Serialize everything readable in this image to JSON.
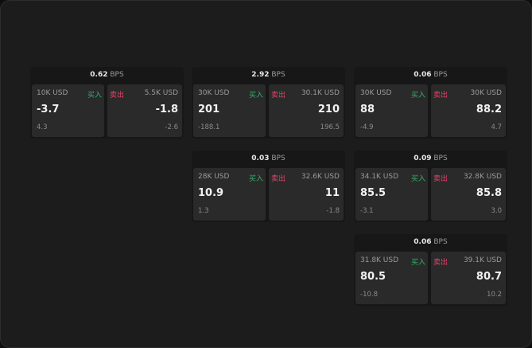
{
  "unit": "BPS",
  "buy_label": "买入",
  "sell_label": "卖出",
  "colors": {
    "buy": "#2fb56a",
    "sell": "#e5436b",
    "background": "#1c1c1c",
    "pane": "#2a2a2a"
  },
  "cards": [
    {
      "spread": "0.62",
      "buy": {
        "qty": "10K USD",
        "price": "-3.7",
        "change": "4.3"
      },
      "sell": {
        "qty": "5.5K USD",
        "price": "-1.8",
        "change": "-2.6"
      }
    },
    {
      "spread": "2.92",
      "buy": {
        "qty": "30K USD",
        "price": "201",
        "change": "-188.1"
      },
      "sell": {
        "qty": "30.1K USD",
        "price": "210",
        "change": "196.5"
      }
    },
    {
      "spread": "0.06",
      "buy": {
        "qty": "30K USD",
        "price": "88",
        "change": "-4.9"
      },
      "sell": {
        "qty": "30K USD",
        "price": "88.2",
        "change": "4.7"
      }
    },
    {
      "spread": "0.03",
      "buy": {
        "qty": "28K USD",
        "price": "10.9",
        "change": "1.3"
      },
      "sell": {
        "qty": "32.6K USD",
        "price": "11",
        "change": "-1.8"
      }
    },
    {
      "spread": "0.09",
      "buy": {
        "qty": "34.1K USD",
        "price": "85.5",
        "change": "-3.1"
      },
      "sell": {
        "qty": "32.8K USD",
        "price": "85.8",
        "change": "3.0"
      }
    },
    {
      "spread": "0.06",
      "buy": {
        "qty": "31.8K USD",
        "price": "80.5",
        "change": "-10.8"
      },
      "sell": {
        "qty": "39.1K USD",
        "price": "80.7",
        "change": "10.2"
      }
    }
  ]
}
